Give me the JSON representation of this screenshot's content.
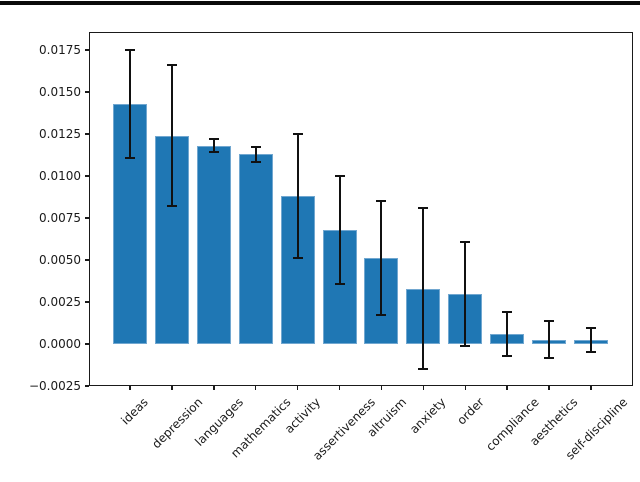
{
  "chart_data": {
    "type": "bar",
    "title": "",
    "xlabel": "",
    "ylabel": "",
    "categories": [
      "ideas",
      "depression",
      "languages",
      "mathematics",
      "activity",
      "assertiveness",
      "altruism",
      "anxiety",
      "order",
      "compliance",
      "aesthetics",
      "self-discipline"
    ],
    "values": [
      0.0143,
      0.0124,
      0.0118,
      0.0113,
      0.0088,
      0.0068,
      0.0051,
      0.0033,
      0.003,
      0.0006,
      0.00025,
      0.00025
    ],
    "yerr": [
      0.0032,
      0.0042,
      0.0004,
      0.00045,
      0.0037,
      0.0032,
      0.0034,
      0.0048,
      0.0031,
      0.0013,
      0.0011,
      0.0007
    ],
    "ylim": [
      -0.0025,
      0.01857
    ],
    "yticks": {
      "values": [
        0.0175,
        0.015,
        0.0125,
        0.01,
        0.0075,
        0.005,
        0.0025,
        0.0,
        -0.0025
      ],
      "labels": [
        "0.0175",
        "0.0150",
        "0.0125",
        "0.0100",
        "0.0075",
        "0.0050",
        "0.0025",
        "0.0000",
        "−0.0025"
      ]
    },
    "xtick_rotation_deg": 45,
    "grid": false,
    "legend": "none",
    "colors": {
      "bar_fill": "#1f77b4",
      "bar_edge": "#71a7d0",
      "error_bar": "#111111",
      "axis": "#1a1a1a",
      "top_rule": "#0a0a0a"
    }
  }
}
